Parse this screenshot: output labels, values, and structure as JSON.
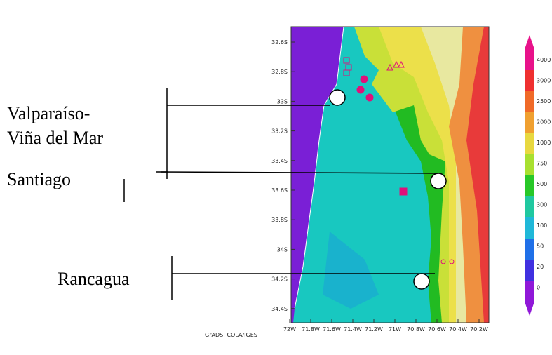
{
  "labels": {
    "valparaiso_line1": "Valparaíso-",
    "valparaiso_line2": "Viña del Mar",
    "santiago": "Santiago",
    "rancagua": "Rancagua"
  },
  "map": {
    "lat_ticks": [
      "32.6S",
      "32.8S",
      "33S",
      "33.2S",
      "33.4S",
      "33.6S",
      "33.8S",
      "34S",
      "34.2S",
      "34.4S"
    ],
    "lon_ticks": [
      "72W",
      "71.8W",
      "71.6W",
      "71.4W",
      "71.2W",
      "71W",
      "70.8W",
      "70.6W",
      "70.4W",
      "70.2W"
    ],
    "credit": "GrADS: COLA/IGES"
  },
  "colorbar": {
    "labels": [
      "4000",
      "3000",
      "2500",
      "2000",
      "1000",
      "750",
      "500",
      "300",
      "100",
      "50",
      "20",
      "0"
    ]
  }
}
